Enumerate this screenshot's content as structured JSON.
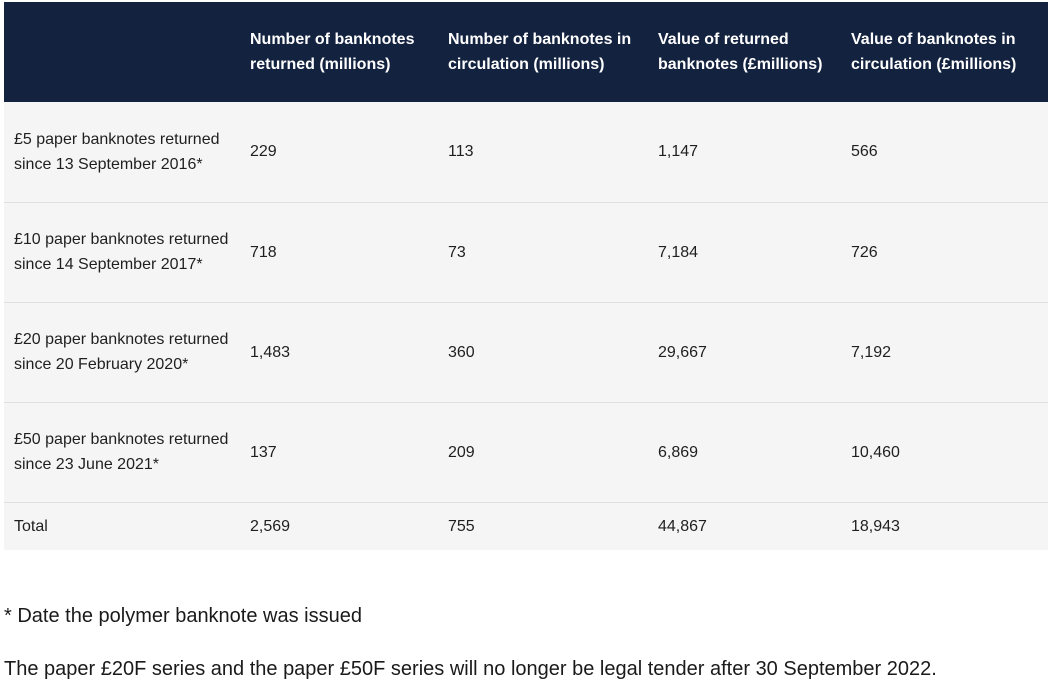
{
  "table": {
    "headers": [
      "",
      "Number of banknotes returned (millions)",
      "Number of banknotes in circulation (millions)",
      "Value of returned banknotes (£millions)",
      "Value of banknotes in circulation (£millions)"
    ],
    "rows": [
      {
        "label": "£5 paper banknotes returned since 13 September 2016*",
        "returned": "229",
        "circulation": "113",
        "value_returned": "1,147",
        "value_circulation": "566"
      },
      {
        "label": "£10 paper banknotes returned since 14 September 2017*",
        "returned": "718",
        "circulation": "73",
        "value_returned": "7,184",
        "value_circulation": "726"
      },
      {
        "label": "£20 paper banknotes returned since 20 February 2020*",
        "returned": "1,483",
        "circulation": "360",
        "value_returned": "29,667",
        "value_circulation": "7,192"
      },
      {
        "label": "£50 paper banknotes returned since 23 June 2021*",
        "returned": "137",
        "circulation": "209",
        "value_returned": "6,869",
        "value_circulation": "10,460"
      },
      {
        "label": "Total",
        "returned": "2,569",
        "circulation": "755",
        "value_returned": "44,867",
        "value_circulation": "18,943"
      }
    ]
  },
  "footnote": "* Date the polymer banknote was issued",
  "note": "The paper £20F series and the paper £50F series will no longer be legal tender after 30 September 2022.",
  "colors": {
    "header_background": "#13223f",
    "row_background": "#f5f5f5"
  }
}
